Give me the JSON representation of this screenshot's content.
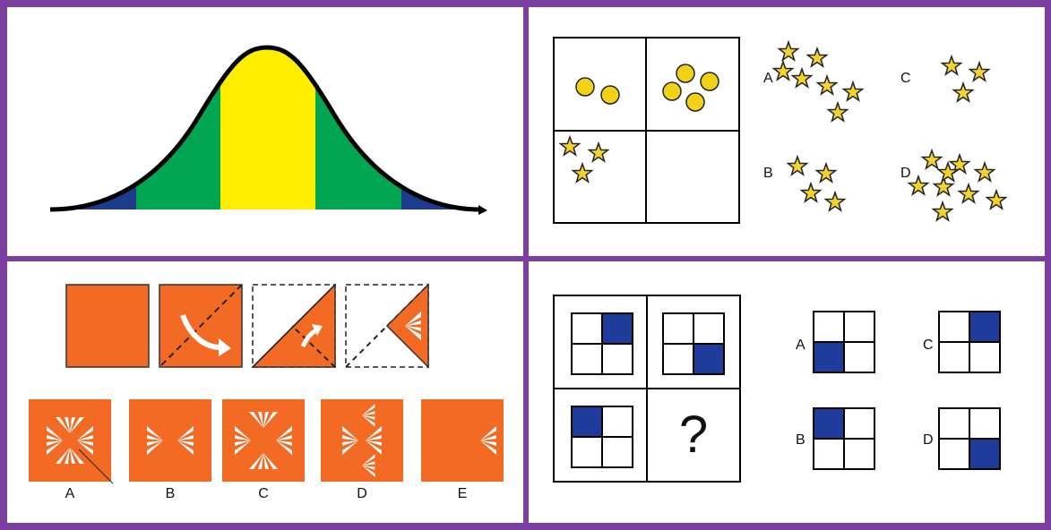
{
  "colors": {
    "frame": "#7b3fa0",
    "orange": "#f26a24",
    "yellow": "#ffee00",
    "green": "#00a651",
    "navy": "#1e3a8a",
    "star": "#f6d32b",
    "circle": "#f2d217",
    "cell_blue": "#1f3b9b"
  },
  "bell_curve": {
    "bands_left_to_right": [
      "navy",
      "green",
      "yellow",
      "green",
      "navy"
    ]
  },
  "star_puzzle": {
    "matrix": {
      "top_left": {
        "shape": "circle",
        "count": 2
      },
      "top_right": {
        "shape": "circle",
        "count": 4
      },
      "bottom_left": {
        "shape": "star",
        "count": 3
      },
      "bottom_right": {
        "shape": "empty",
        "count": 0
      }
    },
    "options": [
      {
        "label": "A",
        "count": 7
      },
      {
        "label": "B",
        "count": 4
      },
      {
        "label": "C",
        "count": 3
      },
      {
        "label": "D",
        "count": 9
      }
    ]
  },
  "folding_puzzle": {
    "steps": 4,
    "options": [
      {
        "label": "A"
      },
      {
        "label": "B"
      },
      {
        "label": "C"
      },
      {
        "label": "D"
      },
      {
        "label": "E"
      }
    ]
  },
  "grid_puzzle": {
    "matrix": {
      "top_left": "top-right",
      "top_right": "bottom-right",
      "bottom_left": "top-left",
      "bottom_right": "?"
    },
    "question_mark": "?",
    "options": [
      {
        "label": "A",
        "filled": "bottom-left"
      },
      {
        "label": "B",
        "filled": "top-left"
      },
      {
        "label": "C",
        "filled": "top-right"
      },
      {
        "label": "D",
        "filled": "bottom-right"
      }
    ]
  }
}
